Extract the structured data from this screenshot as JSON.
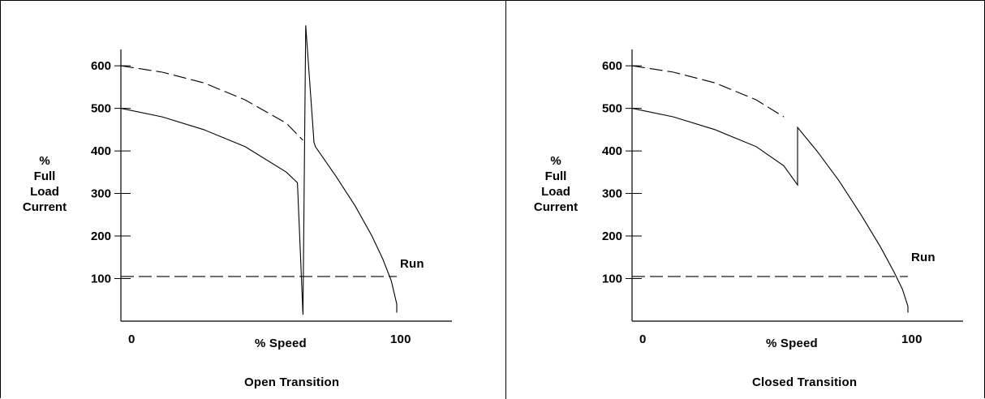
{
  "chart_data": [
    {
      "type": "line",
      "title": "Open Transition",
      "xlabel": "% Speed",
      "ylabel": [
        "%",
        "Full",
        "Load",
        "Current"
      ],
      "xlim": [
        0,
        100
      ],
      "ylim": [
        0,
        640
      ],
      "yticks": [
        100,
        200,
        300,
        400,
        500,
        600
      ],
      "xtick_labels": [
        "0",
        "100"
      ],
      "annotation": "Run",
      "grid": false,
      "series": [
        {
          "style": "dashed",
          "x": [
            0,
            15,
            30,
            45,
            60,
            66
          ],
          "y": [
            600,
            585,
            560,
            520,
            465,
            425
          ]
        },
        {
          "style": "solid",
          "x": [
            0,
            15,
            30,
            45,
            60,
            64,
            66,
            67,
            70,
            70.5,
            78,
            85,
            91,
            95,
            98,
            100,
            100
          ],
          "y": [
            500,
            480,
            450,
            410,
            350,
            325,
            15,
            695,
            420,
            410,
            340,
            270,
            200,
            145,
            95,
            40,
            20
          ]
        },
        {
          "style": "dashed",
          "x": [
            0,
            100
          ],
          "y": [
            105,
            105
          ]
        }
      ]
    },
    {
      "type": "line",
      "title": "Closed Transition",
      "xlabel": "% Speed",
      "ylabel": [
        "%",
        "Full",
        "Load",
        "Current"
      ],
      "xlim": [
        0,
        100
      ],
      "ylim": [
        0,
        640
      ],
      "yticks": [
        100,
        200,
        300,
        400,
        500,
        600
      ],
      "xtick_labels": [
        "0",
        "100"
      ],
      "annotation": "Run",
      "grid": false,
      "series": [
        {
          "style": "dashed",
          "x": [
            0,
            15,
            30,
            45,
            55
          ],
          "y": [
            600,
            585,
            560,
            520,
            480
          ]
        },
        {
          "style": "solid",
          "x": [
            0,
            15,
            30,
            45,
            55,
            60,
            60,
            67,
            75,
            83,
            90,
            95,
            98,
            100,
            100
          ],
          "y": [
            500,
            480,
            450,
            410,
            365,
            320,
            455,
            400,
            330,
            250,
            175,
            115,
            75,
            35,
            20
          ]
        },
        {
          "style": "dashed",
          "x": [
            0,
            100
          ],
          "y": [
            105,
            105
          ]
        }
      ]
    }
  ]
}
